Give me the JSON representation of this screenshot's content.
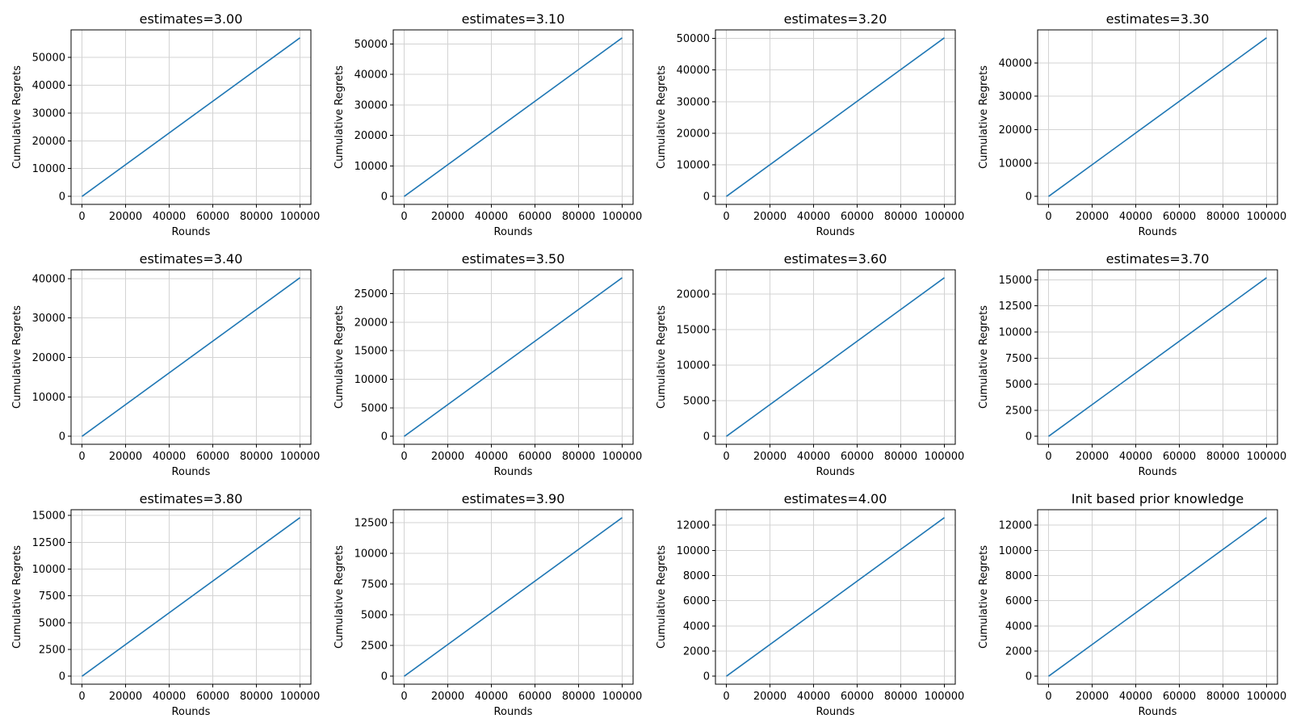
{
  "chart_data": [
    {
      "type": "line",
      "title": "estimates=3.00",
      "xlabel": "Rounds",
      "ylabel": "Cumulative Regrets",
      "grid": true,
      "xlim": [
        -5000,
        105000
      ],
      "xticks": [
        0,
        20000,
        40000,
        60000,
        80000,
        100000
      ],
      "ylim": [
        -2850,
        59850
      ],
      "yticks": [
        0,
        10000,
        20000,
        30000,
        40000,
        50000
      ],
      "series": [
        {
          "x": [
            0,
            100000
          ],
          "y": [
            0,
            57000
          ]
        }
      ]
    },
    {
      "type": "line",
      "title": "estimates=3.10",
      "xlabel": "Rounds",
      "ylabel": "Cumulative Regrets",
      "grid": true,
      "xlim": [
        -5000,
        105000
      ],
      "xticks": [
        0,
        20000,
        40000,
        60000,
        80000,
        100000
      ],
      "ylim": [
        -2600,
        54600
      ],
      "yticks": [
        0,
        10000,
        20000,
        30000,
        40000,
        50000
      ],
      "series": [
        {
          "x": [
            0,
            100000
          ],
          "y": [
            0,
            52000
          ]
        }
      ]
    },
    {
      "type": "line",
      "title": "estimates=3.20",
      "xlabel": "Rounds",
      "ylabel": "Cumulative Regrets",
      "grid": true,
      "xlim": [
        -5000,
        105000
      ],
      "xticks": [
        0,
        20000,
        40000,
        60000,
        80000,
        100000
      ],
      "ylim": [
        -2510,
        52710
      ],
      "yticks": [
        0,
        10000,
        20000,
        30000,
        40000,
        50000
      ],
      "series": [
        {
          "x": [
            0,
            100000
          ],
          "y": [
            0,
            50200
          ]
        }
      ]
    },
    {
      "type": "line",
      "title": "estimates=3.30",
      "xlabel": "Rounds",
      "ylabel": "Cumulative Regrets",
      "grid": true,
      "xlim": [
        -5000,
        105000
      ],
      "xticks": [
        0,
        20000,
        40000,
        60000,
        80000,
        100000
      ],
      "ylim": [
        -2375,
        49875
      ],
      "yticks": [
        0,
        10000,
        20000,
        30000,
        40000
      ],
      "series": [
        {
          "x": [
            0,
            100000
          ],
          "y": [
            0,
            47500
          ]
        }
      ]
    },
    {
      "type": "line",
      "title": "estimates=3.40",
      "xlabel": "Rounds",
      "ylabel": "Cumulative Regrets",
      "grid": true,
      "xlim": [
        -5000,
        105000
      ],
      "xticks": [
        0,
        20000,
        40000,
        60000,
        80000,
        100000
      ],
      "ylim": [
        -2010,
        42210
      ],
      "yticks": [
        0,
        10000,
        20000,
        30000,
        40000
      ],
      "series": [
        {
          "x": [
            0,
            100000
          ],
          "y": [
            0,
            40200
          ]
        }
      ]
    },
    {
      "type": "line",
      "title": "estimates=3.50",
      "xlabel": "Rounds",
      "ylabel": "Cumulative Regrets",
      "grid": true,
      "xlim": [
        -5000,
        105000
      ],
      "xticks": [
        0,
        20000,
        40000,
        60000,
        80000,
        100000
      ],
      "ylim": [
        -1390,
        29190
      ],
      "yticks": [
        0,
        5000,
        10000,
        15000,
        20000,
        25000
      ],
      "series": [
        {
          "x": [
            0,
            100000
          ],
          "y": [
            0,
            27800
          ]
        }
      ]
    },
    {
      "type": "line",
      "title": "estimates=3.60",
      "xlabel": "Rounds",
      "ylabel": "Cumulative Regrets",
      "grid": true,
      "xlim": [
        -5000,
        105000
      ],
      "xticks": [
        0,
        20000,
        40000,
        60000,
        80000,
        100000
      ],
      "ylim": [
        -1115,
        23415
      ],
      "yticks": [
        0,
        5000,
        10000,
        15000,
        20000
      ],
      "series": [
        {
          "x": [
            0,
            100000
          ],
          "y": [
            0,
            22300
          ]
        }
      ]
    },
    {
      "type": "line",
      "title": "estimates=3.70",
      "xlabel": "Rounds",
      "ylabel": "Cumulative Regrets",
      "grid": true,
      "xlim": [
        -5000,
        105000
      ],
      "xticks": [
        0,
        20000,
        40000,
        60000,
        80000,
        100000
      ],
      "ylim": [
        -760,
        15960
      ],
      "yticks": [
        0,
        2500,
        5000,
        7500,
        10000,
        12500,
        15000
      ],
      "series": [
        {
          "x": [
            0,
            100000
          ],
          "y": [
            0,
            15200
          ]
        }
      ]
    },
    {
      "type": "line",
      "title": "estimates=3.80",
      "xlabel": "Rounds",
      "ylabel": "Cumulative Regrets",
      "grid": true,
      "xlim": [
        -5000,
        105000
      ],
      "xticks": [
        0,
        20000,
        40000,
        60000,
        80000,
        100000
      ],
      "ylim": [
        -740,
        15540
      ],
      "yticks": [
        0,
        2500,
        5000,
        7500,
        10000,
        12500,
        15000
      ],
      "series": [
        {
          "x": [
            0,
            100000
          ],
          "y": [
            0,
            14800
          ]
        }
      ]
    },
    {
      "type": "line",
      "title": "estimates=3.90",
      "xlabel": "Rounds",
      "ylabel": "Cumulative Regrets",
      "grid": true,
      "xlim": [
        -5000,
        105000
      ],
      "xticks": [
        0,
        20000,
        40000,
        60000,
        80000,
        100000
      ],
      "ylim": [
        -645,
        13545
      ],
      "yticks": [
        0,
        2500,
        5000,
        7500,
        10000,
        12500
      ],
      "series": [
        {
          "x": [
            0,
            100000
          ],
          "y": [
            0,
            12900
          ]
        }
      ]
    },
    {
      "type": "line",
      "title": "estimates=4.00",
      "xlabel": "Rounds",
      "ylabel": "Cumulative Regrets",
      "grid": true,
      "xlim": [
        -5000,
        105000
      ],
      "xticks": [
        0,
        20000,
        40000,
        60000,
        80000,
        100000
      ],
      "ylim": [
        -630,
        13230
      ],
      "yticks": [
        0,
        2000,
        4000,
        6000,
        8000,
        10000,
        12000
      ],
      "series": [
        {
          "x": [
            0,
            100000
          ],
          "y": [
            0,
            12600
          ]
        }
      ]
    },
    {
      "type": "line",
      "title": "Init based prior knowledge",
      "xlabel": "Rounds",
      "ylabel": "Cumulative Regrets",
      "grid": true,
      "xlim": [
        -5000,
        105000
      ],
      "xticks": [
        0,
        20000,
        40000,
        60000,
        80000,
        100000
      ],
      "ylim": [
        -630,
        13230
      ],
      "yticks": [
        0,
        2000,
        4000,
        6000,
        8000,
        10000,
        12000
      ],
      "series": [
        {
          "x": [
            0,
            100000
          ],
          "y": [
            0,
            12600
          ]
        }
      ]
    }
  ],
  "colors": {
    "line": "#1f77b4",
    "grid": "#d3d3d3",
    "frame": "#000000"
  }
}
